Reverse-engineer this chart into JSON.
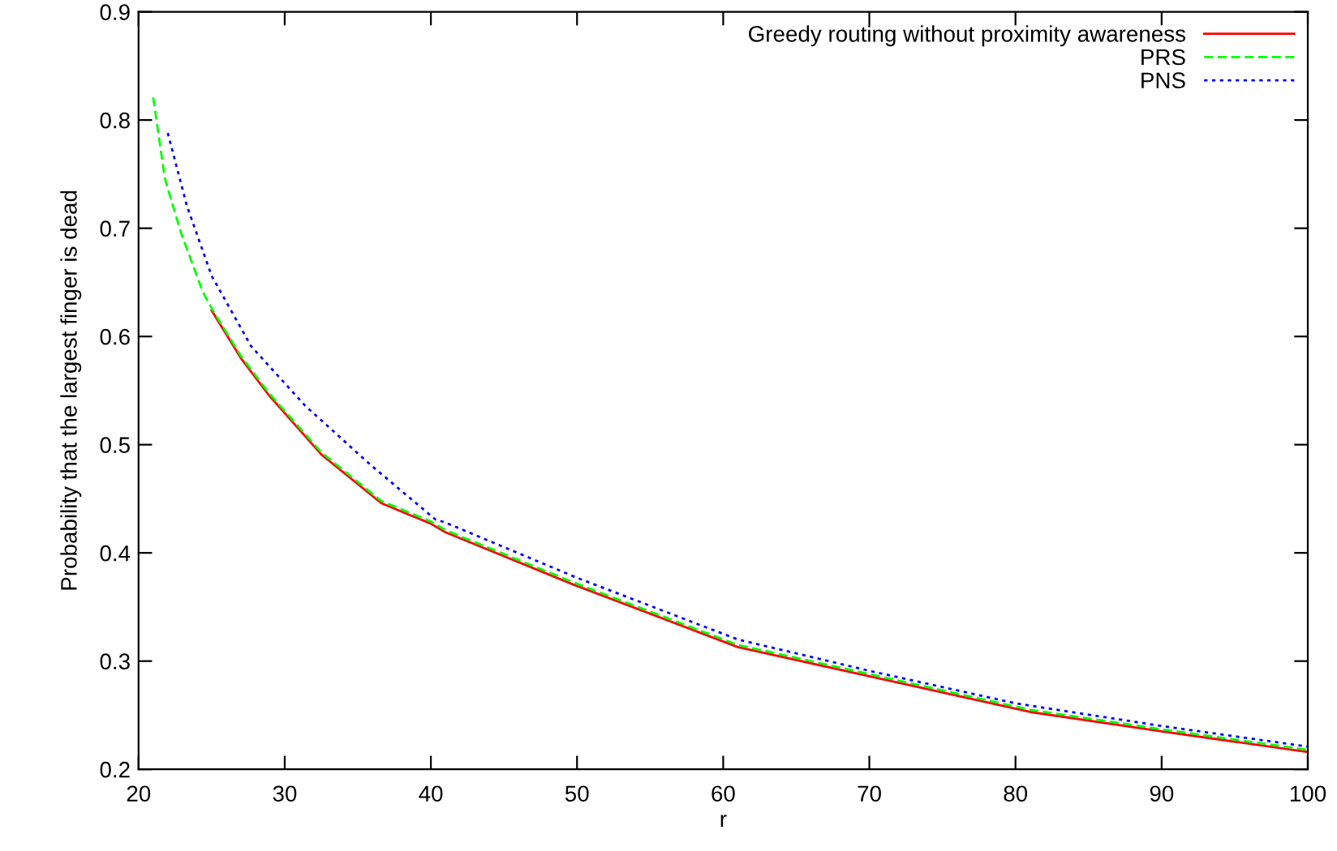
{
  "chart_data": {
    "type": "line",
    "xlabel": "r",
    "ylabel": "Probability that the largest finger is dead",
    "xlim": [
      20,
      100
    ],
    "ylim": [
      0.2,
      0.9
    ],
    "xticks": [
      20,
      30,
      40,
      50,
      60,
      70,
      80,
      90,
      100
    ],
    "yticks": [
      0.2,
      0.3,
      0.4,
      0.5,
      0.6,
      0.7,
      0.8,
      0.9
    ],
    "grid": false,
    "legend": "top right",
    "marker": "none",
    "series": [
      {
        "name": "Greedy routing without proximity awareness",
        "color": "#ff0000",
        "line_style": "solid",
        "x": [
          25,
          27,
          28.9,
          32.5,
          36.6,
          40,
          41,
          49.7,
          61,
          70,
          81,
          90,
          100
        ],
        "values": [
          0.624,
          0.58,
          0.546,
          0.491,
          0.446,
          0.427,
          0.419,
          0.371,
          0.313,
          0.286,
          0.253,
          0.235,
          0.216
        ]
      },
      {
        "name": "PRS",
        "color": "#00ff00",
        "line_style": "dashed",
        "x": [
          21,
          21.8,
          22.9,
          24.4,
          25,
          27,
          28.9,
          32.5,
          36.6,
          40,
          41,
          49.7,
          61,
          70,
          81,
          90,
          100
        ],
        "values": [
          0.821,
          0.746,
          0.696,
          0.641,
          0.626,
          0.582,
          0.548,
          0.493,
          0.448,
          0.429,
          0.421,
          0.373,
          0.315,
          0.288,
          0.255,
          0.237,
          0.218
        ]
      },
      {
        "name": "PNS",
        "color": "#0000ff",
        "line_style": "dotted",
        "x": [
          22,
          23.3,
          25,
          27.7,
          31.4,
          35.9,
          40.3,
          41,
          50,
          61,
          70,
          80,
          90,
          100
        ],
        "values": [
          0.788,
          0.721,
          0.656,
          0.591,
          0.536,
          0.481,
          0.431,
          0.428,
          0.377,
          0.32,
          0.291,
          0.261,
          0.24,
          0.221
        ]
      }
    ]
  }
}
